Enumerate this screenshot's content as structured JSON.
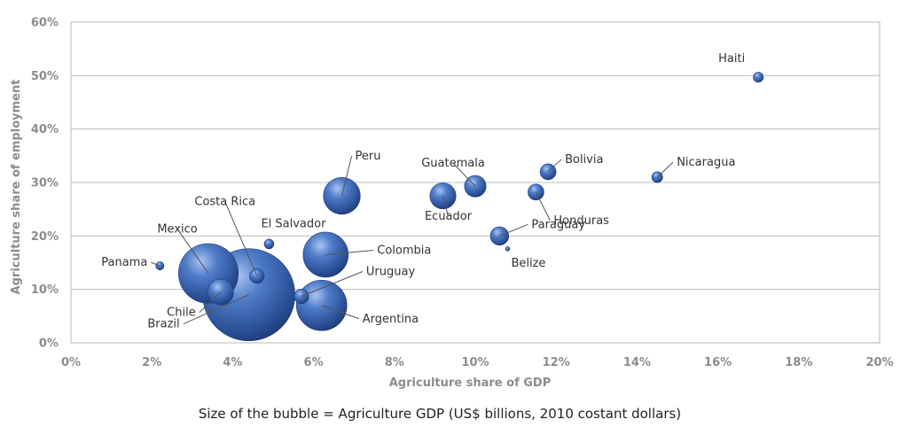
{
  "chart_data": {
    "type": "scatter",
    "subtype": "bubble",
    "xlabel": "Agriculture share of GDP",
    "ylabel": "Agriculture share of employment",
    "caption": "Size of the bubble = Agriculture GDP (US$ billions, 2010 costant dollars)",
    "xlim": [
      0,
      20
    ],
    "ylim": [
      0,
      60
    ],
    "x_ticks": [
      "0%",
      "2%",
      "4%",
      "6%",
      "8%",
      "10%",
      "12%",
      "14%",
      "16%",
      "18%",
      "20%"
    ],
    "y_ticks": [
      "0%",
      "10%",
      "20%",
      "30%",
      "40%",
      "50%",
      "60%"
    ],
    "grid": "horizontal",
    "bubble_color": "#3a64b4",
    "points": [
      {
        "name": "Haiti",
        "x": 17.0,
        "y": 49.7,
        "size": 1.2
      },
      {
        "name": "Nicaragua",
        "x": 14.5,
        "y": 31.0,
        "size": 1.4
      },
      {
        "name": "Bolivia",
        "x": 11.8,
        "y": 32.0,
        "size": 3.0
      },
      {
        "name": "Honduras",
        "x": 11.5,
        "y": 28.2,
        "size": 3.0
      },
      {
        "name": "Guatemala",
        "x": 10.0,
        "y": 29.3,
        "size": 5.5
      },
      {
        "name": "Ecuador",
        "x": 9.2,
        "y": 27.5,
        "size": 8.0
      },
      {
        "name": "Paraguay",
        "x": 10.6,
        "y": 20.0,
        "size": 4.0
      },
      {
        "name": "Belize",
        "x": 10.8,
        "y": 17.6,
        "size": 0.1
      },
      {
        "name": "Peru",
        "x": 6.7,
        "y": 27.5,
        "size": 16.0
      },
      {
        "name": "El Salvador",
        "x": 4.9,
        "y": 18.5,
        "size": 1.1
      },
      {
        "name": "Colombia",
        "x": 6.3,
        "y": 16.5,
        "size": 24.0
      },
      {
        "name": "Uruguay",
        "x": 5.7,
        "y": 8.7,
        "size": 2.5
      },
      {
        "name": "Argentina",
        "x": 6.2,
        "y": 7.0,
        "size": 30.0
      },
      {
        "name": "Panama",
        "x": 2.2,
        "y": 14.4,
        "size": 0.8
      },
      {
        "name": "Mexico",
        "x": 3.4,
        "y": 13.0,
        "size": 42.0
      },
      {
        "name": "Costa Rica",
        "x": 4.6,
        "y": 12.5,
        "size": 2.5
      },
      {
        "name": "Chile",
        "x": 3.7,
        "y": 9.5,
        "size": 8.0
      },
      {
        "name": "Brazil",
        "x": 4.4,
        "y": 9.0,
        "size": 100.0
      }
    ]
  }
}
